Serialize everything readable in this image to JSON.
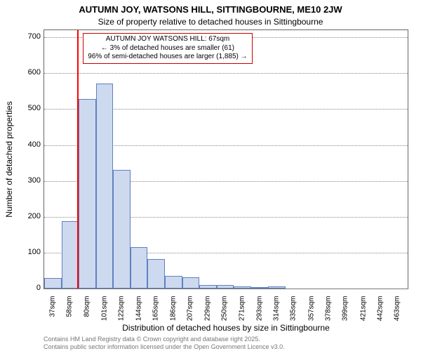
{
  "titles": {
    "line1": "AUTUMN JOY, WATSONS HILL, SITTINGBOURNE, ME10 2JW",
    "line2": "Size of property relative to detached houses in Sittingbourne"
  },
  "ylabel": "Number of detached properties",
  "xlabel": "Distribution of detached houses by size in Sittingbourne",
  "annotation": {
    "line1": "AUTUMN JOY WATSONS HILL: 67sqm",
    "line2": "← 3% of detached houses are smaller (61)",
    "line3": "96% of semi-detached houses are larger (1,885) →"
  },
  "footer": {
    "line1": "Contains HM Land Registry data © Crown copyright and database right 2025.",
    "line2": "Contains public sector information licensed under the Open Government Licence v3.0."
  },
  "chart": {
    "type": "histogram",
    "background_color": "#ffffff",
    "plot_border_color": "#666666",
    "grid_color": "#888888",
    "bar_fill": "#cdd9ef",
    "bar_stroke": "#6080c0",
    "refline_color": "#ff0000",
    "refline_x": 67,
    "annot_border": "#cc0000",
    "ylim": [
      0,
      720
    ],
    "yticks": [
      0,
      100,
      200,
      300,
      400,
      500,
      600,
      700
    ],
    "xlim": [
      26,
      475
    ],
    "xticks": [
      37,
      58,
      80,
      101,
      122,
      144,
      165,
      186,
      207,
      229,
      250,
      271,
      293,
      314,
      335,
      357,
      378,
      399,
      421,
      442,
      463
    ],
    "xtick_suffix": "sqm",
    "bin_width": 21.3,
    "bins_start": 26,
    "values": [
      30,
      188,
      528,
      572,
      330,
      115,
      82,
      36,
      32,
      10,
      10,
      6,
      4,
      6,
      0,
      0,
      0,
      0,
      0,
      0,
      0
    ]
  }
}
